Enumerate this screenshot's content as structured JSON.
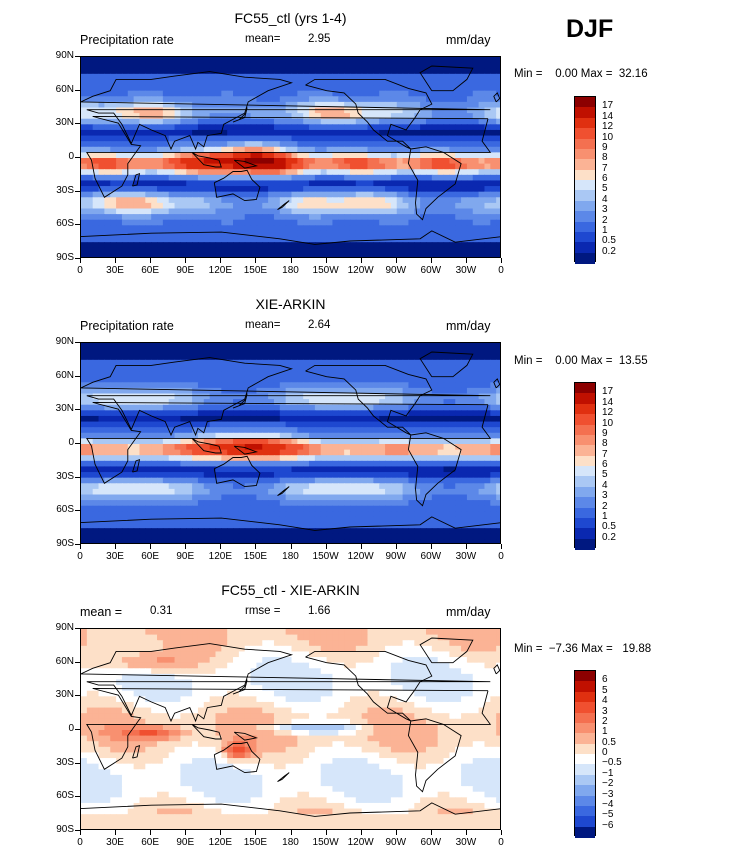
{
  "season": "DJF",
  "lat_labels": [
    "90N",
    "60N",
    "30N",
    "0",
    "30S",
    "60S",
    "90S"
  ],
  "lon_labels": [
    "0",
    "30E",
    "60E",
    "90E",
    "120E",
    "150E",
    "180",
    "150W",
    "120W",
    "90W",
    "60W",
    "30W",
    "0"
  ],
  "panels": [
    {
      "title": "FC55_ctl (yrs 1-4)",
      "left_label": "Precipitation rate",
      "mid_label": "mean=",
      "mid_value": "2.95",
      "mid2_label": "",
      "mid2_value": "",
      "units": "mm/day",
      "minmax": "Min =    0.00 Max =  32.16",
      "colorbar": {
        "labels": [
          "17",
          "14",
          "12",
          "10",
          "9",
          "8",
          "7",
          "6",
          "5",
          "4",
          "3",
          "2",
          "1",
          "0.5",
          "0.2"
        ],
        "colors": [
          "#8c0000",
          "#c01000",
          "#e03010",
          "#f05030",
          "#f47050",
          "#f89070",
          "#fbb395",
          "#fde0c8",
          "#d6e6fa",
          "#aac8f4",
          "#80a8ee",
          "#5c88e8",
          "#3a68e0",
          "#1e48d0",
          "#0a28b0",
          "#001880"
        ]
      }
    },
    {
      "title": "XIE-ARKIN",
      "left_label": "Precipitation rate",
      "mid_label": "mean=",
      "mid_value": "2.64",
      "mid2_label": "",
      "mid2_value": "",
      "units": "mm/day",
      "minmax": "Min =    0.00 Max =  13.55",
      "colorbar": {
        "labels": [
          "17",
          "14",
          "12",
          "10",
          "9",
          "8",
          "7",
          "6",
          "5",
          "4",
          "3",
          "2",
          "1",
          "0.5",
          "0.2"
        ],
        "colors": [
          "#8c0000",
          "#c01000",
          "#e03010",
          "#f05030",
          "#f47050",
          "#f89070",
          "#fbb395",
          "#fde0c8",
          "#d6e6fa",
          "#aac8f4",
          "#80a8ee",
          "#5c88e8",
          "#3a68e0",
          "#1e48d0",
          "#0a28b0",
          "#001880"
        ]
      }
    },
    {
      "title": "FC55_ctl - XIE-ARKIN",
      "left_label": "mean =",
      "mid_label": "0.31",
      "mid_value": "",
      "mid2_label": "rmse =",
      "mid2_value": "1.66",
      "units": "mm/day",
      "minmax": "Min =  −7.36 Max =   19.88",
      "colorbar": {
        "labels": [
          "6",
          "5",
          "4",
          "3",
          "2",
          "1",
          "0.5",
          "0",
          "−0.5",
          "−1",
          "−2",
          "−3",
          "−4",
          "−5",
          "−6"
        ],
        "colors": [
          "#8c0000",
          "#c01000",
          "#e03010",
          "#f05030",
          "#f47050",
          "#f89070",
          "#fbb395",
          "#fde0c8",
          "#ffffff",
          "#d6e6fa",
          "#aac8f4",
          "#80a8ee",
          "#5c88e8",
          "#3a68e0",
          "#1e48d0",
          "#001880"
        ]
      }
    }
  ]
}
